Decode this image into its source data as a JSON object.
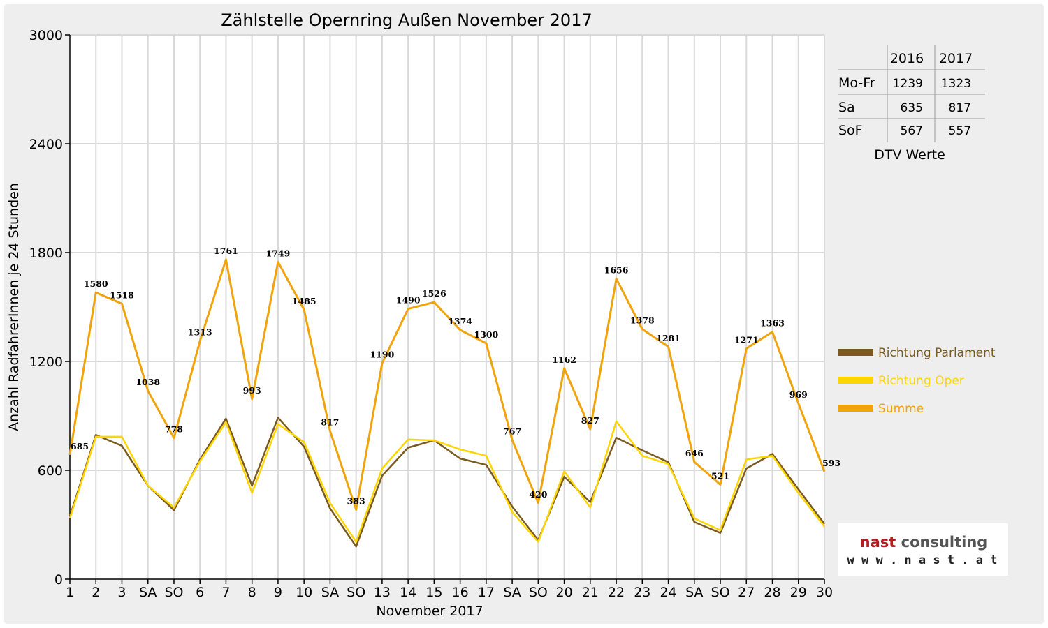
{
  "chart_data": {
    "type": "line",
    "title": "Zählstelle Opernring Außen November 2017",
    "xlabel": "November 2017",
    "ylabel": "Anzahl RadfahrerInnen je 24 Stunden",
    "ylim": [
      0,
      3000
    ],
    "yticks": [
      "0",
      "600",
      "1200",
      "1800",
      "2400",
      "3000"
    ],
    "grid": true,
    "legend_position": "right",
    "categories": [
      "1",
      "2",
      "3",
      "SA",
      "SO",
      "6",
      "7",
      "8",
      "9",
      "10",
      "SA",
      "SO",
      "13",
      "14",
      "15",
      "16",
      "17",
      "SA",
      "SO",
      "20",
      "21",
      "22",
      "23",
      "24",
      "SA",
      "SO",
      "27",
      "28",
      "29",
      "30"
    ],
    "category_colors": [
      "#e00000",
      "#000000",
      "#000000",
      "#000000",
      "#e00000",
      "#000000",
      "#000000",
      "#000000",
      "#000000",
      "#000000",
      "#000000",
      "#e00000",
      "#000000",
      "#000000",
      "#000000",
      "#000000",
      "#000000",
      "#000000",
      "#e00000",
      "#000000",
      "#000000",
      "#000000",
      "#000000",
      "#000000",
      "#000000",
      "#e00000",
      "#000000",
      "#000000",
      "#000000",
      "#000000"
    ],
    "series": [
      {
        "name": "Richtung Parlament",
        "color": "#7a5a1e",
        "values": [
          345,
          795,
          735,
          515,
          380,
          660,
          885,
          515,
          890,
          730,
          390,
          180,
          570,
          725,
          765,
          665,
          630,
          400,
          215,
          565,
          425,
          780,
          710,
          645,
          315,
          255,
          610,
          690,
          495,
          305
        ]
      },
      {
        "name": "Richtung Oper",
        "color": "#ffd500",
        "values": [
          335,
          785,
          785,
          515,
          395,
          650,
          865,
          475,
          855,
          755,
          420,
          205,
          610,
          770,
          765,
          715,
          680,
          370,
          205,
          595,
          395,
          870,
          680,
          635,
          335,
          270,
          660,
          680,
          475,
          290
        ]
      },
      {
        "name": "Summe",
        "color": "#f0a30a",
        "values": [
          685,
          1580,
          1518,
          1038,
          778,
          1313,
          1761,
          993,
          1749,
          1485,
          817,
          383,
          1190,
          1490,
          1526,
          1374,
          1300,
          767,
          420,
          1162,
          827,
          1656,
          1378,
          1281,
          646,
          521,
          1271,
          1363,
          969,
          593
        ]
      }
    ],
    "data_labels": [
      "685",
      "1580",
      "1518",
      "1038",
      "778",
      "1313",
      "1761",
      "993",
      "1749",
      "1485",
      "817",
      "383",
      "1190",
      "1490",
      "1526",
      "1374",
      "1300",
      "767",
      "420",
      "1162",
      "827",
      "1656",
      "1378",
      "1281",
      "646",
      "521",
      "1271",
      "1363",
      "969",
      "593"
    ]
  },
  "dtv_table": {
    "years": [
      "2016",
      "2017"
    ],
    "rows": [
      {
        "label": "Mo-Fr",
        "v2016": "1239",
        "v2017": "1323"
      },
      {
        "label": "Sa",
        "v2016": "635",
        "v2017": "817"
      },
      {
        "label": "SoF",
        "v2016": "567",
        "v2017": "557"
      }
    ],
    "caption": "DTV Werte"
  },
  "logo": {
    "name": "nast consulting",
    "url": "w w w . n a s t . a t"
  }
}
